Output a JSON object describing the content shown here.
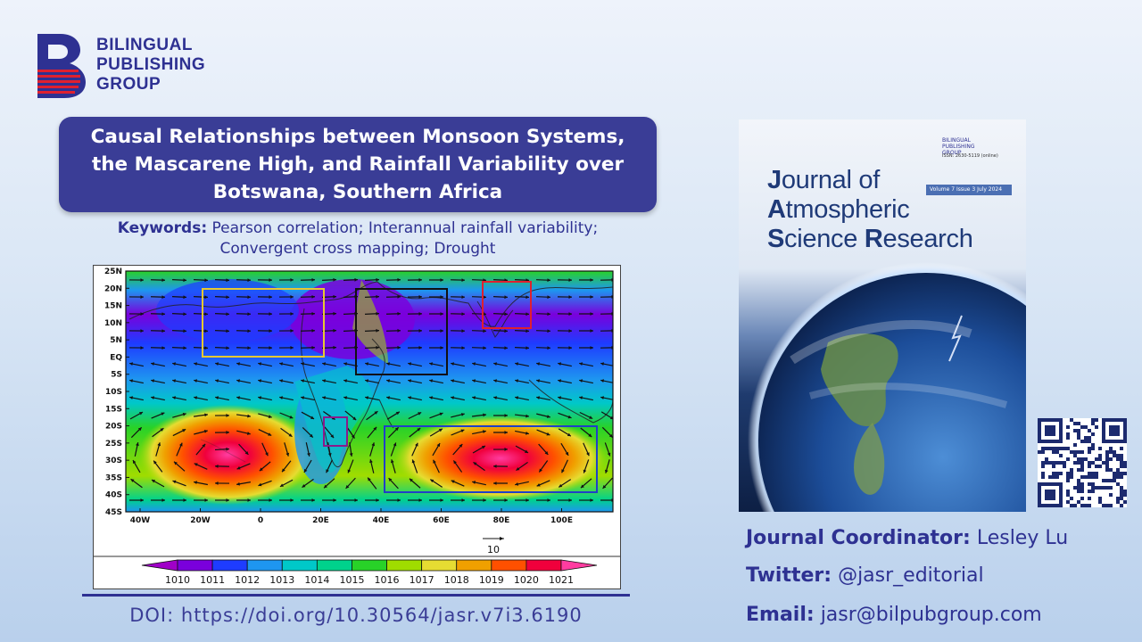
{
  "publisher": {
    "name_lines": [
      "BILINGUAL",
      "PUBLISHING",
      "GROUP"
    ],
    "logo_icon": "bpg-b-logo",
    "brand_color": "#2e3192",
    "accent_color": "#e0202f"
  },
  "title": "Causal Relationships between Monsoon Systems, the Mascarene High, and Rainfall Variability over Botswana, Southern Africa",
  "keywords": {
    "label": "Keywords:",
    "line1": "Pearson correlation; Interannual rainfall variability;",
    "line2": "Convergent cross mapping; Drought"
  },
  "figure": {
    "lat_labels": [
      "25N",
      "20N",
      "15N",
      "10N",
      "5N",
      "EQ",
      "5S",
      "10S",
      "15S",
      "20S",
      "25S",
      "30S",
      "35S",
      "40S",
      "45S"
    ],
    "lon_labels": [
      "40W",
      "20W",
      "0",
      "20E",
      "40E",
      "60E",
      "80E",
      "100E"
    ],
    "ref_vector_label": "10",
    "colorbar_values": [
      "1010",
      "1011",
      "1012",
      "1013",
      "1014",
      "1015",
      "1016",
      "1017",
      "1018",
      "1019",
      "1020",
      "1021"
    ],
    "colorbar_colors": [
      "#a000c8",
      "#7a00dc",
      "#1e3cff",
      "#1e96f0",
      "#00c8c8",
      "#00d28c",
      "#28d228",
      "#a0dc00",
      "#e6dc32",
      "#f0a000",
      "#ff5000",
      "#f0003c",
      "#ff3ca0"
    ]
  },
  "doi": "DOI: https://doi.org/10.30564/jasr.v7i3.6190",
  "cover": {
    "title_lines": [
      {
        "cap": "J",
        "rest": "ournal of"
      },
      {
        "cap": "A",
        "rest": "tmospheric"
      },
      {
        "cap": "S",
        "rest": "cience ",
        "cap2": "R",
        "rest2": "esearch"
      }
    ],
    "volume": "Volume 7 Issue 3 July 2024",
    "logo_lines": [
      "BILINGUAL",
      "PUBLISHING",
      "GROUP"
    ],
    "issn": "ISSN: 2630-5119 (online)"
  },
  "contacts": {
    "coordinator": {
      "label": "Journal Coordinator:",
      "value": "Lesley Lu"
    },
    "twitter": {
      "label": "Twitter:",
      "value": "@jasr_editorial"
    },
    "email": {
      "label": "Email:",
      "value": "jasr@bilpubgroup.com"
    }
  }
}
